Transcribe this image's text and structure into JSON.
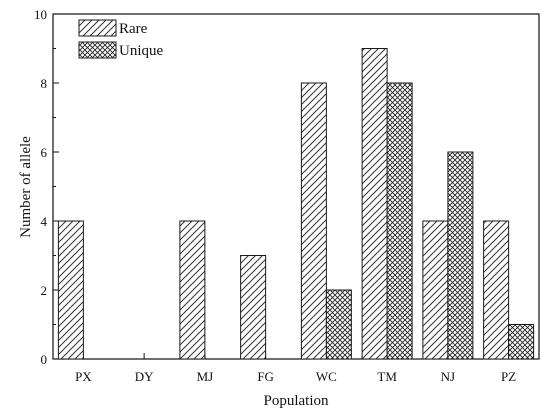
{
  "chart_data": {
    "type": "bar",
    "title": "",
    "xlabel": "Population",
    "ylabel": "Number of allele",
    "categories": [
      "PX",
      "DY",
      "MJ",
      "FG",
      "WC",
      "TM",
      "NJ",
      "PZ"
    ],
    "series": [
      {
        "name": "Rare",
        "values": [
          4,
          0,
          4,
          3,
          8,
          9,
          4,
          4
        ],
        "pattern": "diagonal-hatch"
      },
      {
        "name": "Unique",
        "values": [
          0,
          0,
          0,
          0,
          2,
          8,
          6,
          1
        ],
        "pattern": "crosshatch"
      }
    ],
    "ylim": [
      0,
      10
    ],
    "yticks": [
      0,
      2,
      4,
      6,
      8,
      10
    ],
    "grid": false,
    "legend": "top-left",
    "colors": {
      "axis": "#111111",
      "bar_stroke": "#1a1a1a",
      "hatch": "#333333",
      "background": "#ffffff"
    }
  }
}
